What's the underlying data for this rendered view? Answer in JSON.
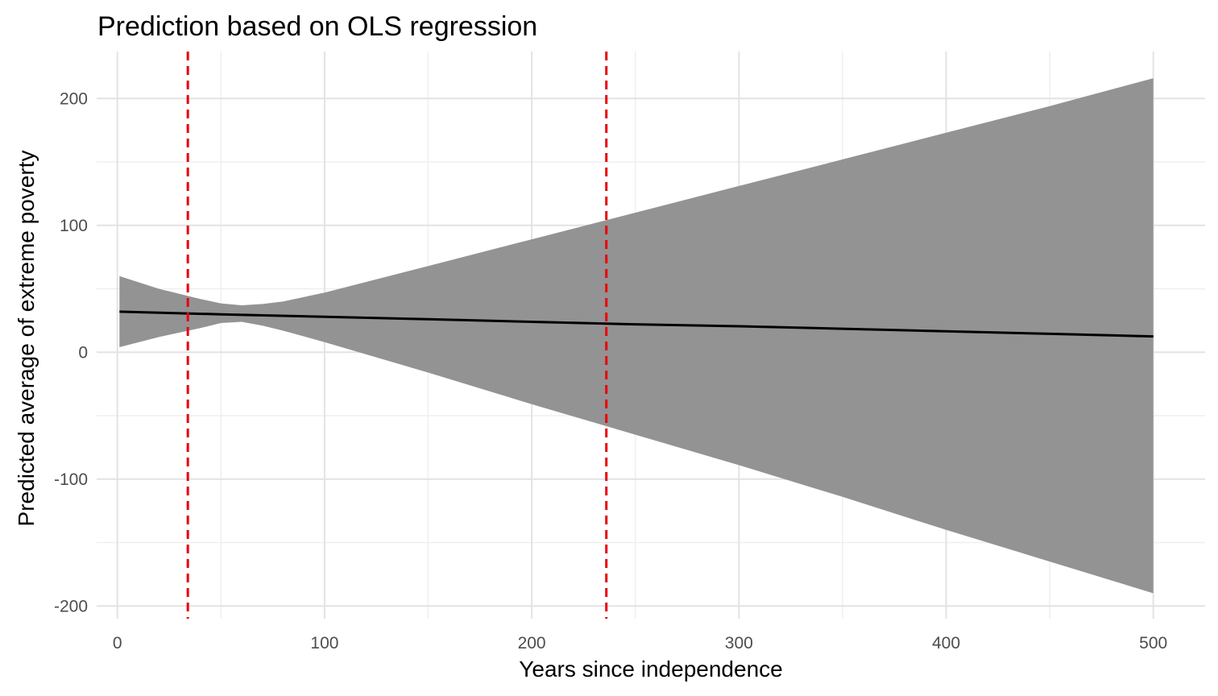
{
  "chart_data": {
    "type": "line",
    "title": "Prediction based on OLS regression",
    "xlabel": "Years since independence",
    "ylabel": "Predicted average of extreme poverty",
    "xlim": [
      -10,
      525
    ],
    "ylim": [
      -210,
      237
    ],
    "x_ticks": [
      0,
      100,
      200,
      300,
      400,
      500
    ],
    "y_ticks": [
      -200,
      -100,
      0,
      100,
      200
    ],
    "x_tick_labels": [
      "0",
      "100",
      "200",
      "300",
      "400",
      "500"
    ],
    "y_tick_labels": [
      "-200",
      "-100",
      "0",
      "100",
      "200"
    ],
    "grid": true,
    "legend": "none",
    "series": [
      {
        "type": "line",
        "color": "#000000",
        "x": [
          1,
          50,
          100,
          150,
          200,
          250,
          300,
          350,
          400,
          450,
          500
        ],
        "y": [
          32,
          29.9,
          28,
          26,
          24,
          22,
          20.5,
          18.5,
          16.5,
          14.5,
          12.5
        ]
      },
      {
        "type": "ribbon",
        "color": "#939393",
        "x": [
          1,
          20,
          40,
          50,
          60,
          70,
          80,
          100,
          150,
          200,
          250,
          300,
          350,
          400,
          450,
          500
        ],
        "upper": [
          60,
          50,
          42,
          38.5,
          37,
          38,
          40,
          47,
          68,
          89,
          110,
          131,
          152,
          173,
          194,
          216
        ],
        "lower": [
          4,
          12,
          19,
          23,
          24,
          21,
          17,
          8,
          -16,
          -41,
          -65,
          -89,
          -114,
          -140,
          -165,
          -190
        ]
      }
    ],
    "reference_lines": [
      {
        "orientation": "vertical",
        "x": 34,
        "style": "dashed",
        "color": "#e8000b"
      },
      {
        "orientation": "vertical",
        "x": 236,
        "style": "dashed",
        "color": "#e8000b"
      }
    ]
  }
}
